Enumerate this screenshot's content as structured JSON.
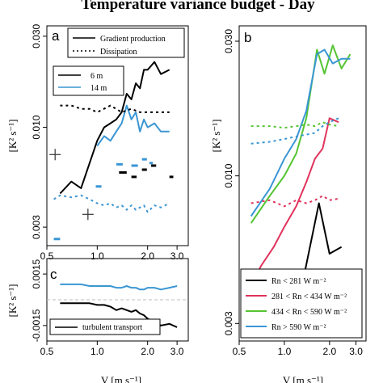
{
  "figure": {
    "title": "Temperature variance budget - Day",
    "ylabel": "[K² s⁻¹]",
    "xlabel": "V [m s⁻¹]"
  },
  "chart_data": [
    {
      "panel_label": "a",
      "type": "line",
      "xscale": "log",
      "yscale": "log",
      "xlim": [
        0.5,
        3.5
      ],
      "ylim": [
        0.0024,
        0.034
      ],
      "xticks": [
        0.5,
        1.0,
        2.0,
        3.0
      ],
      "xtick_labels": [
        "0.5",
        "1.0",
        "2.0",
        "3.0"
      ],
      "yticks": [
        0.003,
        0.01,
        0.03
      ],
      "ytick_labels": [
        "0.003",
        "0.010",
        "0.030"
      ],
      "legend_style": [
        {
          "label": "Gradient production",
          "dash": "solid"
        },
        {
          "label": "Dissipation",
          "dash": "dotted"
        }
      ],
      "legend_height": [
        {
          "label": "6 m",
          "color": "#000000"
        },
        {
          "label": "14 m",
          "color": "#3a96d4"
        }
      ],
      "series": [
        {
          "color": "#000000",
          "dash": "solid",
          "x": [
            0.6,
            0.7,
            0.8,
            0.9,
            1.0,
            1.1,
            1.2,
            1.3,
            1.4,
            1.5,
            1.6,
            1.7,
            1.8,
            1.9,
            2.0,
            2.2,
            2.4,
            2.7
          ],
          "y": [
            0.0045,
            0.0052,
            0.0048,
            0.0065,
            0.0085,
            0.01,
            0.0105,
            0.011,
            0.012,
            0.015,
            0.014,
            0.017,
            0.016,
            0.02,
            0.02,
            0.022,
            0.019,
            0.02
          ]
        },
        {
          "color": "#3a96d4",
          "dash": "solid",
          "x": [
            1.0,
            1.1,
            1.2,
            1.3,
            1.4,
            1.5,
            1.6,
            1.7,
            1.8,
            1.9,
            2.0,
            2.2,
            2.4,
            2.7
          ],
          "y": [
            0.008,
            0.009,
            0.0085,
            0.0095,
            0.0105,
            0.013,
            0.011,
            0.012,
            0.0095,
            0.011,
            0.01,
            0.0105,
            0.0095,
            0.0095
          ]
        },
        {
          "color": "#000000",
          "dash": "dotted",
          "x": [
            0.6,
            0.7,
            0.8,
            0.9,
            1.0,
            1.2,
            1.4,
            1.6,
            1.8,
            2.0,
            2.2,
            2.4,
            2.7
          ],
          "y": [
            0.013,
            0.013,
            0.0125,
            0.0125,
            0.012,
            0.013,
            0.012,
            0.0125,
            0.012,
            0.012,
            0.012,
            0.012,
            0.012
          ]
        },
        {
          "color": "#3a96d4",
          "dash": "dotted",
          "x": [
            0.55,
            0.6,
            0.7,
            0.8,
            0.9,
            1.0,
            1.1,
            1.2,
            1.3,
            1.4,
            1.5,
            1.6,
            1.7,
            1.8,
            1.9,
            2.0,
            2.2,
            2.4,
            2.7
          ],
          "y": [
            0.0042,
            0.0044,
            0.0043,
            0.0044,
            0.0042,
            0.004,
            0.0039,
            0.004,
            0.0038,
            0.0039,
            0.0037,
            0.0039,
            0.0037,
            0.0038,
            0.0039,
            0.0036,
            0.0039,
            0.0038,
            0.004
          ]
        }
      ],
      "segments": [
        {
          "color": "#000000",
          "x": [
            1.35,
            1.5
          ],
          "y": [
            0.0058,
            0.0058
          ]
        },
        {
          "color": "#000000",
          "x": [
            1.6,
            1.72
          ],
          "y": [
            0.0055,
            0.0055
          ]
        },
        {
          "color": "#000000",
          "x": [
            1.85,
            1.98
          ],
          "y": [
            0.006,
            0.006
          ]
        },
        {
          "color": "#000000",
          "x": [
            2.1,
            2.25
          ],
          "y": [
            0.0063,
            0.0063
          ]
        },
        {
          "color": "#000000",
          "x": [
            2.7,
            2.85
          ],
          "y": [
            0.0055,
            0.0055
          ]
        },
        {
          "color": "#3a96d4",
          "x": [
            0.55,
            0.6
          ],
          "y": [
            0.0026,
            0.0026
          ]
        },
        {
          "color": "#3a96d4",
          "x": [
            0.98,
            1.06
          ],
          "y": [
            0.0049,
            0.0049
          ]
        },
        {
          "color": "#3a96d4",
          "x": [
            1.3,
            1.42
          ],
          "y": [
            0.0064,
            0.0064
          ]
        },
        {
          "color": "#3a96d4",
          "x": [
            1.6,
            1.75
          ],
          "y": [
            0.0063,
            0.0063
          ]
        },
        {
          "color": "#3a96d4",
          "x": [
            1.85,
            1.98
          ],
          "y": [
            0.0068,
            0.0068
          ]
        },
        {
          "color": "#3a96d4",
          "x": [
            2.05,
            2.15
          ],
          "y": [
            0.0065,
            0.0065
          ]
        }
      ],
      "markers": [
        {
          "x": 0.56,
          "y": 0.0072
        },
        {
          "x": 0.88,
          "y": 0.0035
        }
      ]
    },
    {
      "panel_label": "b",
      "type": "line",
      "xscale": "log",
      "yscale": "log",
      "xlim": [
        0.5,
        3.5
      ],
      "ylim": [
        0.0026,
        0.034
      ],
      "xticks": [
        0.5,
        1.0,
        2.0,
        3.0
      ],
      "xtick_labels": [
        "0.5",
        "1.0",
        "2.0",
        "3.0"
      ],
      "yticks": [
        0.003,
        0.01,
        0.03
      ],
      "ytick_labels": [
        "0.003",
        "0.010",
        "0.030"
      ],
      "legend": [
        {
          "label": "Rn < 281 W m⁻²",
          "color": "#000000"
        },
        {
          "label": "281 < Rn < 434 W m⁻²",
          "color": "#e0335c"
        },
        {
          "label": "434 < Rn < 590 W m⁻²",
          "color": "#55c433"
        },
        {
          "label": "Rn > 590 W m⁻²",
          "color": "#3a96d4"
        }
      ],
      "series": [
        {
          "color": "#000000",
          "dash": "solid",
          "x": [
            0.8,
            1.0,
            1.3,
            1.7,
            2.0,
            2.4
          ],
          "y": [
            0.0029,
            0.0033,
            0.004,
            0.008,
            0.0053,
            0.0056
          ]
        },
        {
          "color": "#e0335c",
          "dash": "solid",
          "x": [
            0.6,
            0.7,
            0.85,
            1.0,
            1.2,
            1.4,
            1.6,
            1.8,
            2.0,
            2.3
          ],
          "y": [
            0.0041,
            0.0048,
            0.0056,
            0.0066,
            0.0078,
            0.0095,
            0.0115,
            0.0125,
            0.016,
            0.0155
          ]
        },
        {
          "color": "#55c433",
          "dash": "solid",
          "x": [
            0.6,
            0.8,
            1.0,
            1.2,
            1.4,
            1.65,
            1.85,
            2.1,
            2.4,
            2.75
          ],
          "y": [
            0.0068,
            0.0085,
            0.01,
            0.012,
            0.016,
            0.028,
            0.023,
            0.029,
            0.024,
            0.027
          ]
        },
        {
          "color": "#3a96d4",
          "dash": "solid",
          "x": [
            0.6,
            0.8,
            1.0,
            1.2,
            1.4,
            1.65,
            1.85,
            2.1,
            2.4,
            2.75
          ],
          "y": [
            0.0072,
            0.009,
            0.0115,
            0.0135,
            0.017,
            0.027,
            0.028,
            0.025,
            0.026,
            0.026
          ]
        },
        {
          "color": "#000000",
          "dash": "dotted",
          "x": [
            0.8,
            1.0,
            1.2,
            1.4,
            1.6,
            1.8,
            2.0,
            2.3
          ],
          "y": [
            0.0036,
            0.0035,
            0.0033,
            0.0032,
            0.0036,
            0.0034,
            0.0038,
            0.0041
          ]
        },
        {
          "color": "#e0335c",
          "dash": "dotted",
          "x": [
            0.6,
            0.8,
            1.0,
            1.2,
            1.4,
            1.6,
            1.8,
            2.0,
            2.3
          ],
          "y": [
            0.008,
            0.0082,
            0.0078,
            0.0082,
            0.008,
            0.0082,
            0.0085,
            0.0082,
            0.0083
          ]
        },
        {
          "color": "#55c433",
          "dash": "dotted",
          "x": [
            0.6,
            0.8,
            1.0,
            1.2,
            1.4,
            1.6,
            1.8,
            2.0,
            2.3
          ],
          "y": [
            0.015,
            0.015,
            0.0148,
            0.015,
            0.0152,
            0.015,
            0.0155,
            0.0152,
            0.015
          ]
        },
        {
          "color": "#3a96d4",
          "dash": "dotted",
          "x": [
            0.6,
            0.8,
            1.0,
            1.2,
            1.4,
            1.6,
            1.8,
            2.0,
            2.3
          ],
          "y": [
            0.013,
            0.0132,
            0.0135,
            0.0138,
            0.014,
            0.0142,
            0.015,
            0.0155,
            0.016
          ]
        }
      ]
    },
    {
      "panel_label": "c",
      "type": "line",
      "xscale": "log",
      "yscale": "linear",
      "xlim": [
        0.5,
        3.5
      ],
      "ylim": [
        -0.0024,
        0.0024
      ],
      "xticks": [
        0.5,
        1.0,
        2.0,
        3.0
      ],
      "xtick_labels": [
        "0.5",
        "1.0",
        "2.0",
        "3.0"
      ],
      "yticks": [
        -0.0015,
        0.0015
      ],
      "ytick_labels": [
        "-0.0015",
        "0.0015"
      ],
      "zero_line": 0.0,
      "legend": [
        {
          "label": "turbulent transport",
          "color": "#000000"
        }
      ],
      "series": [
        {
          "color": "#3a96d4",
          "dash": "solid",
          "x": [
            0.6,
            0.7,
            0.8,
            0.9,
            1.0,
            1.1,
            1.2,
            1.3,
            1.4,
            1.5,
            1.6,
            1.7,
            1.8,
            1.9,
            2.0,
            2.2,
            2.4,
            2.7,
            3.0
          ],
          "y": [
            0.0009,
            0.0009,
            0.0009,
            0.0008,
            0.0008,
            0.0008,
            0.0008,
            0.0007,
            0.0007,
            0.0008,
            0.0007,
            0.0007,
            0.0006,
            0.0006,
            0.0007,
            0.0007,
            0.0006,
            0.0007,
            0.0008
          ]
        },
        {
          "color": "#000000",
          "dash": "solid",
          "x": [
            0.6,
            0.7,
            0.8,
            0.9,
            1.0,
            1.1,
            1.2,
            1.3,
            1.4,
            1.5,
            1.6,
            1.7,
            1.8,
            1.9,
            2.0,
            2.2,
            2.4,
            2.7,
            3.0
          ],
          "y": [
            -0.0002,
            -0.0002,
            -0.0002,
            -0.0002,
            -0.0003,
            -0.0003,
            -0.0004,
            -0.0006,
            -0.0005,
            -0.0006,
            -0.0007,
            -0.0006,
            -0.0008,
            -0.0009,
            -0.0011,
            -0.0013,
            -0.0015,
            -0.0014,
            -0.0016
          ]
        }
      ]
    }
  ]
}
